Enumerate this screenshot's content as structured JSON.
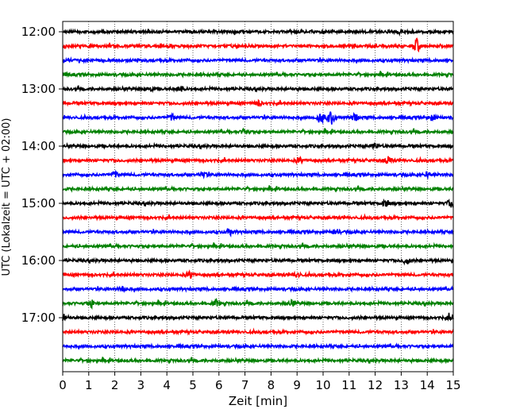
{
  "chart_data": {
    "type": "line",
    "title": "",
    "xlabel": "Zeit  [min]",
    "ylabel": "UTC (Lokalzeit = UTC + 02:00)",
    "xlim": [
      0,
      15
    ],
    "x_ticks": [
      "0",
      "1",
      "2",
      "3",
      "4",
      "5",
      "6",
      "7",
      "8",
      "9",
      "10",
      "11",
      "12",
      "13",
      "14",
      "15"
    ],
    "y_tick_labels": [
      "12:00",
      "13:00",
      "14:00",
      "15:00",
      "16:00",
      "17:00"
    ],
    "grid": "vertical-dotted",
    "trace_colors": [
      "#000000",
      "#ff0000",
      "#0000ff",
      "#008000"
    ],
    "trace_start": "12:00",
    "trace_interval_minutes": 15,
    "trace_count": 24,
    "events": [
      {
        "trace": 1,
        "t": 13.6,
        "amp": 8
      },
      {
        "trace": 4,
        "t": 3.3,
        "amp": 3.5
      },
      {
        "trace": 4,
        "t": 4.5,
        "amp": 3
      },
      {
        "trace": 5,
        "t": 7.5,
        "amp": 3
      },
      {
        "trace": 6,
        "t": 4.2,
        "amp": 3.5
      },
      {
        "trace": 6,
        "t": 9.9,
        "amp": 7
      },
      {
        "trace": 6,
        "t": 10.3,
        "amp": 8
      },
      {
        "trace": 6,
        "t": 11.2,
        "amp": 4
      },
      {
        "trace": 6,
        "t": 14.2,
        "amp": 3
      },
      {
        "trace": 7,
        "t": 7.0,
        "amp": 3
      },
      {
        "trace": 8,
        "t": 12.0,
        "amp": 3
      },
      {
        "trace": 9,
        "t": 9.1,
        "amp": 3
      },
      {
        "trace": 9,
        "t": 12.5,
        "amp": 5
      },
      {
        "trace": 10,
        "t": 2.0,
        "amp": 3
      },
      {
        "trace": 10,
        "t": 5.4,
        "amp": 3
      },
      {
        "trace": 10,
        "t": 14.0,
        "amp": 3
      },
      {
        "trace": 12,
        "t": 12.4,
        "amp": 3.5
      },
      {
        "trace": 12,
        "t": 14.9,
        "amp": 4
      },
      {
        "trace": 14,
        "t": 6.4,
        "amp": 4.5
      },
      {
        "trace": 14,
        "t": 10.5,
        "amp": 3
      },
      {
        "trace": 16,
        "t": 13.2,
        "amp": 4
      },
      {
        "trace": 17,
        "t": 4.9,
        "amp": 4
      },
      {
        "trace": 17,
        "t": 9.0,
        "amp": 3
      },
      {
        "trace": 18,
        "t": 2.3,
        "amp": 3
      },
      {
        "trace": 19,
        "t": 1.1,
        "amp": 4
      },
      {
        "trace": 19,
        "t": 5.9,
        "amp": 3.5
      },
      {
        "trace": 19,
        "t": 8.8,
        "amp": 3
      },
      {
        "trace": 20,
        "t": 0.05,
        "amp": 4
      },
      {
        "trace": 20,
        "t": 14.9,
        "amp": 3
      }
    ]
  }
}
